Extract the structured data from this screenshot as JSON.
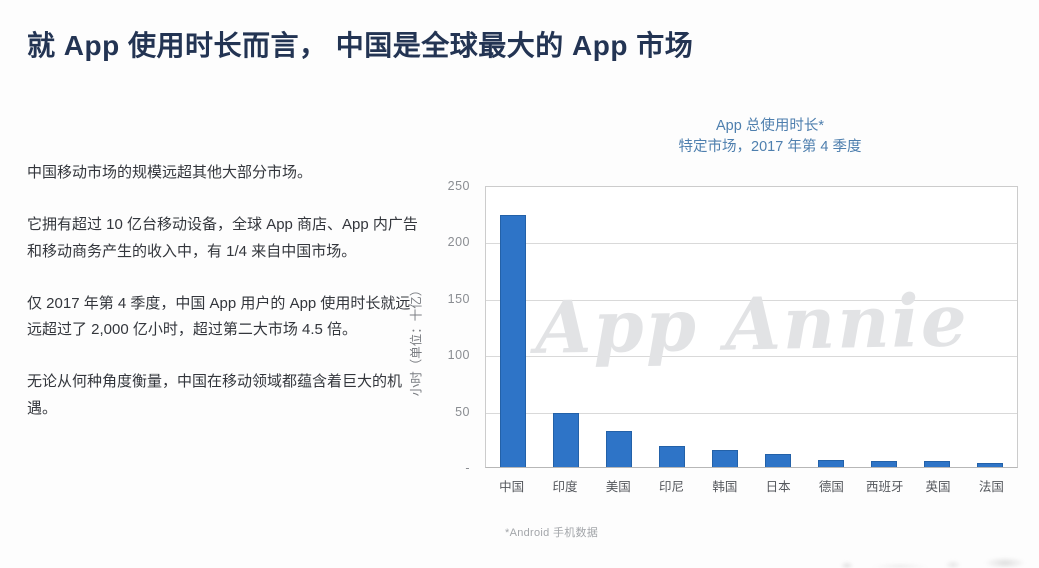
{
  "page": {
    "title": "就 App 使用时长而言， 中国是全球最大的 App 市场"
  },
  "left_panel": {
    "paragraphs": [
      "中国移动市场的规模远超其他大部分市场。",
      "它拥有超过 10 亿台移动设备，全球 App 商店、App 内广告和移动商务产生的收入中，有 1/4 来自中国市场。",
      "仅 2017 年第 4 季度，中国 App 用户的 App 使用时长就远远超过了 2,000 亿小时，超过第二大市场 4.5 倍。",
      "无论从何种角度衡量，中国在移动领域都蕴含着巨大的机遇。"
    ]
  },
  "chart_data": {
    "type": "bar",
    "title": "App 总使用时长*",
    "subtitle": "特定市场，2017 年第 4 季度",
    "ylabel": "小时（单位：十亿）",
    "categories": [
      "中国",
      "印度",
      "美国",
      "印尼",
      "韩国",
      "日本",
      "德国",
      "西班牙",
      "英国",
      "法国"
    ],
    "values": [
      225,
      48,
      32,
      19,
      15,
      12,
      6,
      5,
      5,
      4
    ],
    "ylim": [
      0,
      250
    ],
    "ytick_step": 50,
    "ytick_labels": [
      "250",
      "200",
      "150",
      "100",
      "50",
      "-"
    ],
    "grid": true,
    "legend": "none",
    "bar_color": "#2e74c7",
    "bar_border_color": "#2361a8",
    "watermark": "App Annie",
    "footnote": "*Android 手机数据"
  },
  "colors": {
    "page_title": "#233453",
    "body_text": "#33363c",
    "chart_title": "#4e7fae",
    "axis_text": "#8a8d92",
    "gridline": "#d9d9d9",
    "background": "#fdfdfd"
  }
}
